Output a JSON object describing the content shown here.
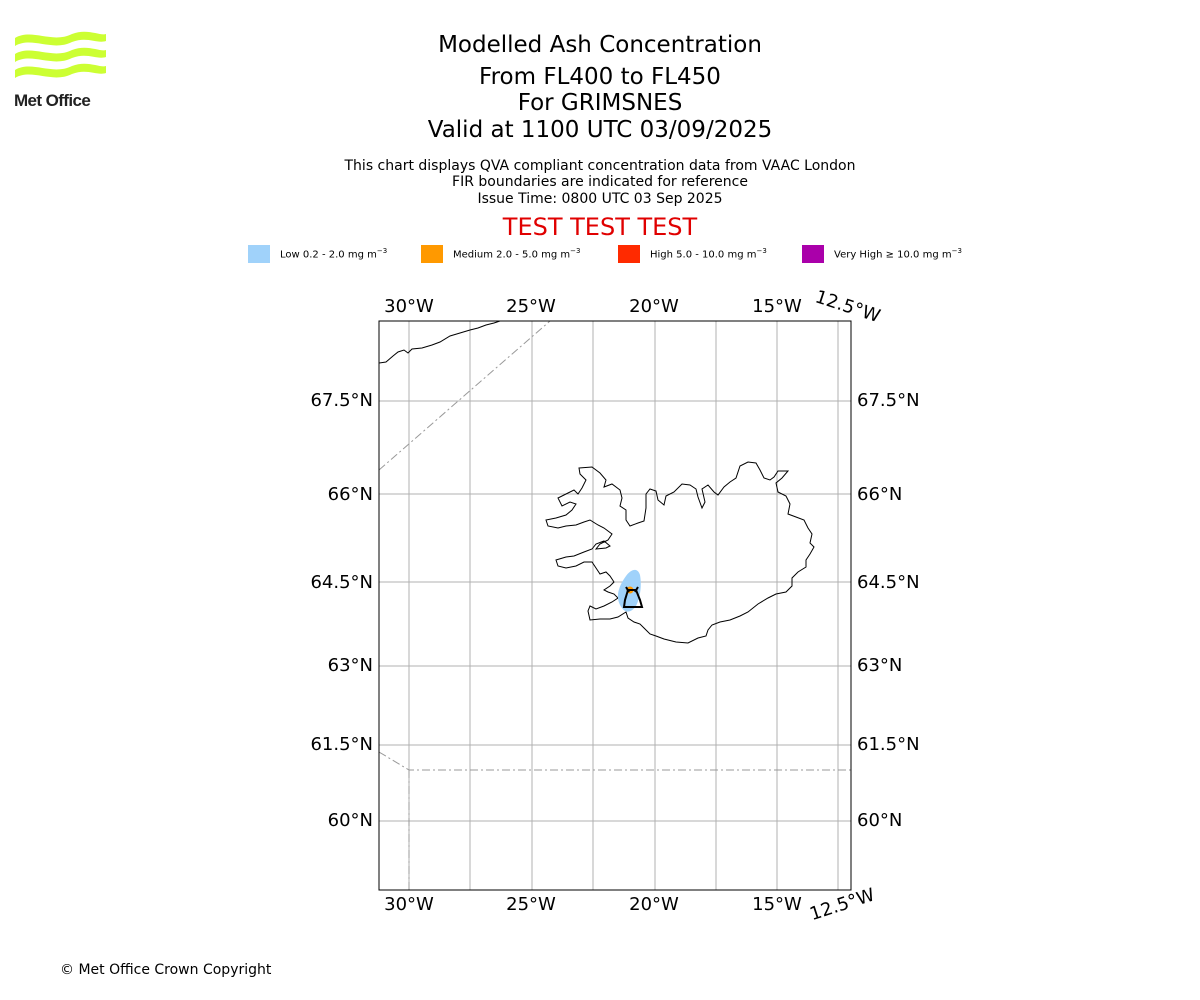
{
  "logo": {
    "name": "Met Office",
    "color": "#ccff33"
  },
  "title": {
    "line1": "Modelled Ash Concentration",
    "line2": "From FL400 to FL450",
    "line3": "For GRIMSNES",
    "line4": "Valid at 1100 UTC 03/09/2025"
  },
  "subtitle": {
    "line1": "This chart displays QVA compliant concentration data from VAAC London",
    "line2": "FIR boundaries are indicated for reference",
    "line3": "Issue Time: 0800 UTC 03 Sep 2025"
  },
  "test_banner": "TEST TEST TEST",
  "legend": [
    {
      "label": "Low 0.2 - 2.0 mg m",
      "sup": "−3",
      "color": "#a0d2fa"
    },
    {
      "label": "Medium 2.0 - 5.0 mg m",
      "sup": "−3",
      "color": "#ff9900"
    },
    {
      "label": "High 5.0 - 10.0 mg m",
      "sup": "−3",
      "color": "#ff2a00"
    },
    {
      "label": "Very High ≥ 10.0 mg m",
      "sup": "−3",
      "color": "#aa00aa"
    }
  ],
  "map": {
    "lon_ticks_top": [
      "30°W",
      "25°W",
      "20°W",
      "15°W",
      "12.5°W"
    ],
    "lon_ticks_bottom": [
      "30°W",
      "25°W",
      "20°W",
      "15°W",
      "12.5°W"
    ],
    "lat_ticks_left": [
      "67.5°N",
      "66°N",
      "64.5°N",
      "63°N",
      "61.5°N",
      "60°N"
    ],
    "lat_ticks_right": [
      "67.5°N",
      "66°N",
      "64.5°N",
      "63°N",
      "61.5°N",
      "60°N"
    ],
    "volcano_icon": "volcano-symbol-icon"
  },
  "copyright": "© Met Office Crown Copyright"
}
